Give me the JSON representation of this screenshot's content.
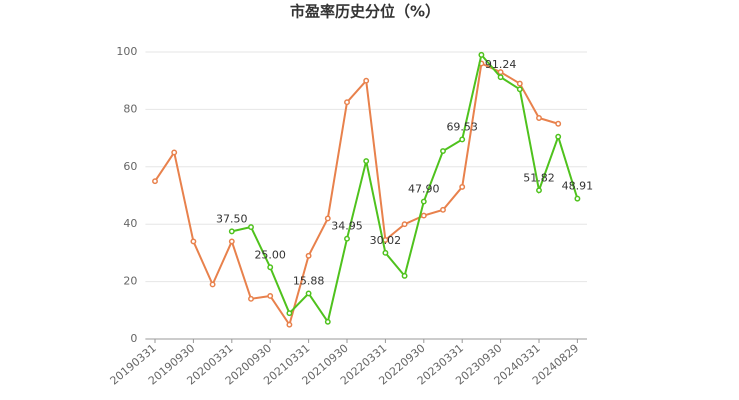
{
  "chart_data": {
    "type": "line",
    "title": "市盈率历史分位（%）",
    "categories": [
      "20190331",
      null,
      "20190930",
      null,
      "20200331",
      null,
      "20200930",
      null,
      "20210331",
      null,
      "20210930",
      null,
      "20220331",
      null,
      "20220930",
      null,
      "20230331",
      null,
      "20230930",
      null,
      "20240331",
      null,
      "20240829"
    ],
    "series": [
      {
        "color": "#e8814c",
        "values": [
          55,
          65,
          34,
          19,
          34,
          14,
          15,
          5,
          29,
          42,
          82.5,
          90,
          34.5,
          40,
          43,
          45,
          53,
          96,
          93,
          89,
          77,
          75,
          null
        ]
      },
      {
        "color": "#4fc21d",
        "values": [
          null,
          null,
          null,
          null,
          37.5,
          39,
          25,
          9,
          15.88,
          6,
          34.95,
          62,
          30.02,
          22,
          47.9,
          65.5,
          69.53,
          99,
          91.24,
          87,
          51.82,
          70.5,
          48.91
        ],
        "value_labels": [
          null,
          null,
          null,
          null,
          "37.50",
          null,
          "25.00",
          null,
          "15.88",
          null,
          "34.95",
          null,
          "30.02",
          null,
          "47.90",
          null,
          "69.53",
          null,
          "91.24",
          null,
          "51.82",
          null,
          "48.91"
        ]
      }
    ],
    "ylim": [
      0,
      100
    ],
    "yticks": [
      0,
      20,
      40,
      60,
      80,
      100
    ],
    "grid": true
  }
}
